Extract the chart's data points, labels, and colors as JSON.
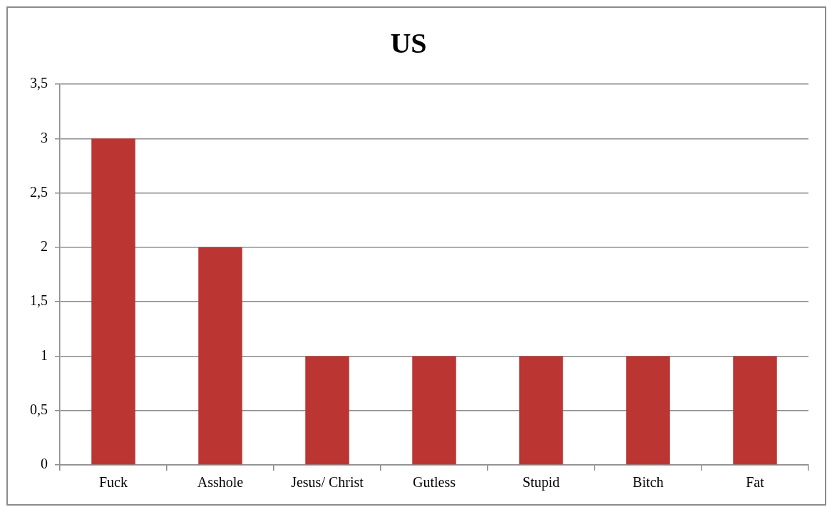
{
  "chart_data": {
    "type": "bar",
    "title": "US",
    "categories": [
      "Fuck",
      "Asshole",
      "Jesus/ Christ",
      "Gutless",
      "Stupid",
      "Bitch",
      "Fat"
    ],
    "values": [
      3,
      2,
      1,
      1,
      1,
      1,
      1
    ],
    "color": "#bb3533",
    "ylim": [
      0,
      3.5
    ],
    "yticks": [
      0,
      {
        "value": 0.5,
        "label": "0,5"
      },
      1,
      {
        "value": 1.5,
        "label": "1,5"
      },
      2,
      {
        "value": 2.5,
        "label": "2,5"
      },
      3,
      {
        "value": 3.5,
        "label": "3,5"
      }
    ],
    "grid": "y"
  }
}
